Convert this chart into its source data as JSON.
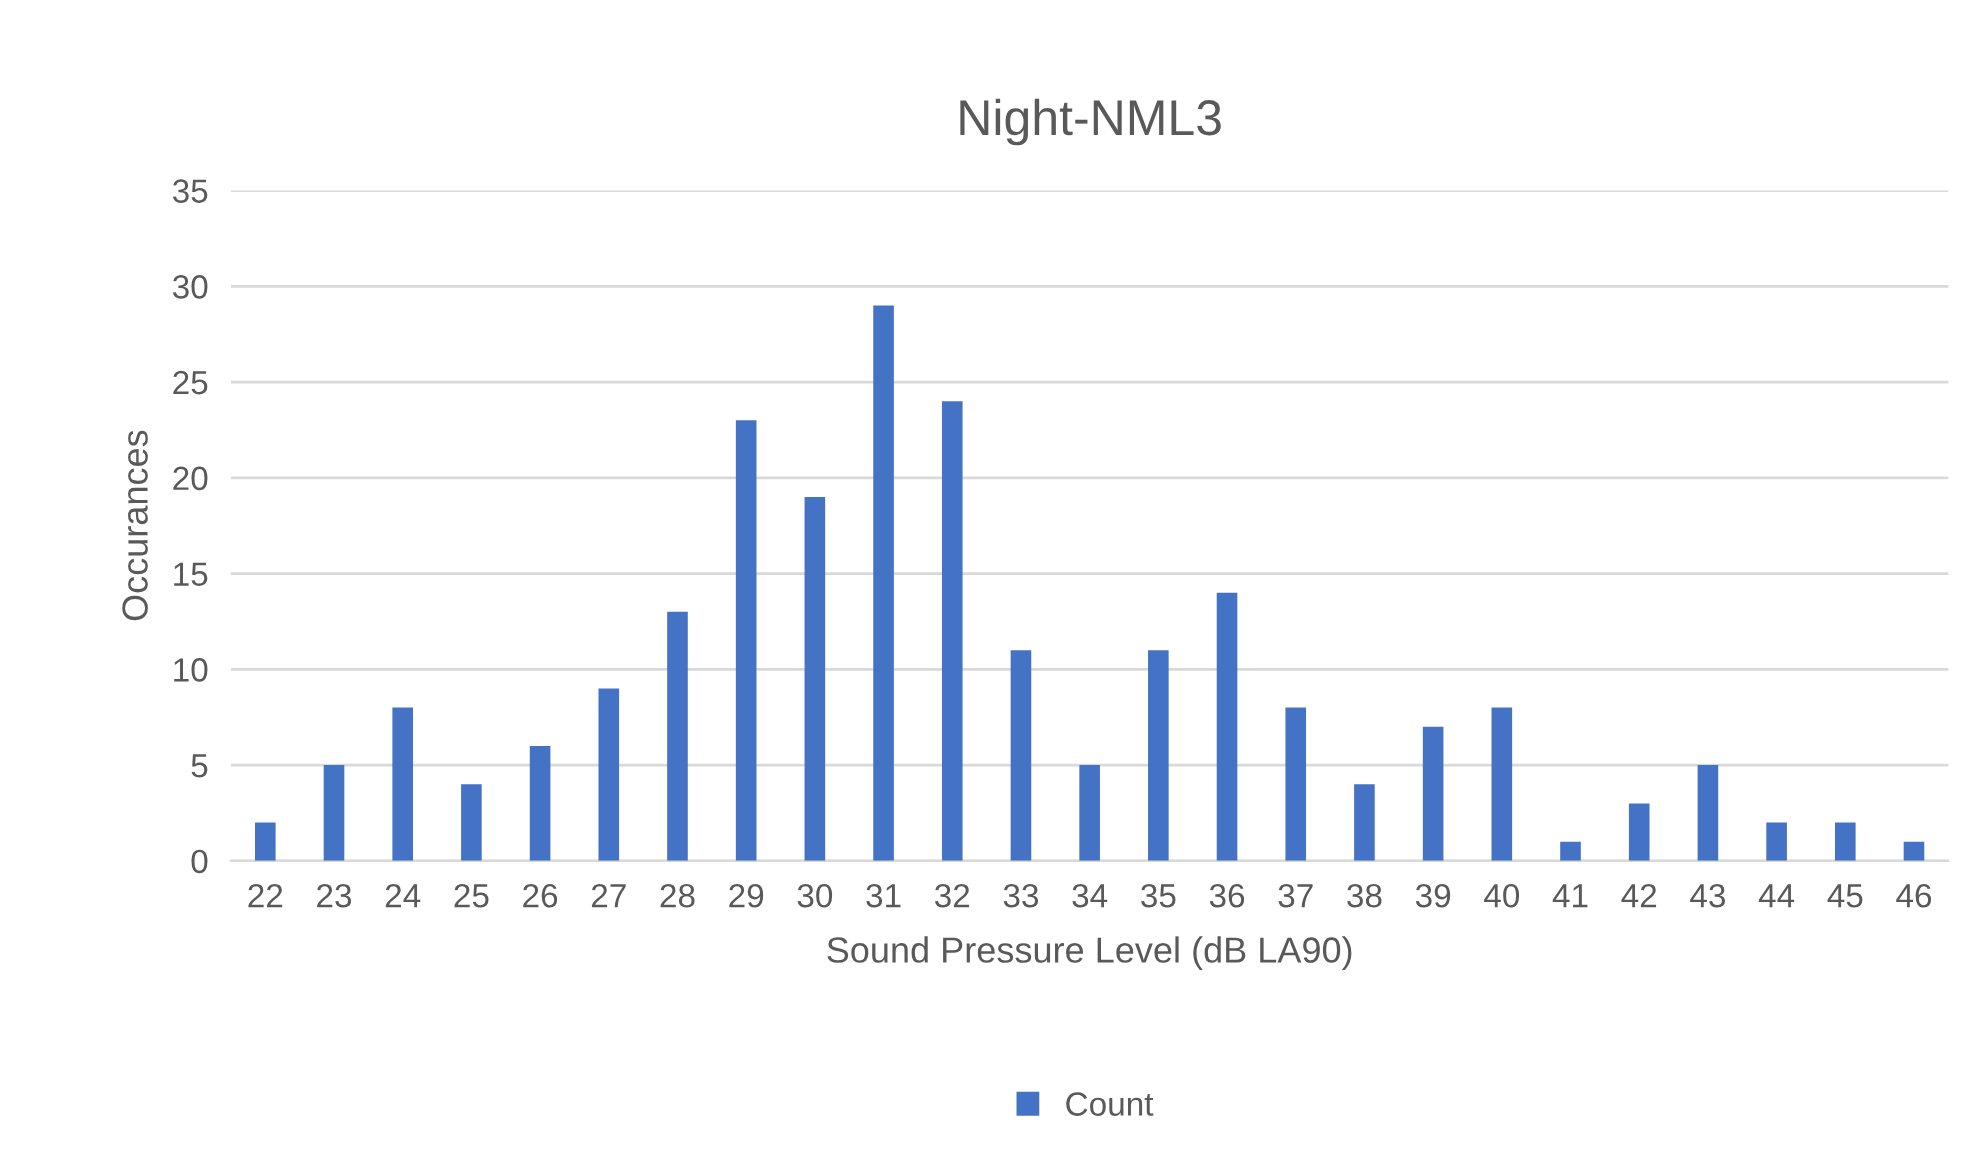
{
  "chart_data": {
    "type": "bar",
    "title": "Night-NML3",
    "xlabel": "Sound Pressure Level (dB LA90)",
    "ylabel": "Occurances",
    "categories": [
      "22",
      "23",
      "24",
      "25",
      "26",
      "27",
      "28",
      "29",
      "30",
      "31",
      "32",
      "33",
      "34",
      "35",
      "36",
      "37",
      "38",
      "39",
      "40",
      "41",
      "42",
      "43",
      "44",
      "45",
      "46"
    ],
    "series": [
      {
        "name": "Count",
        "color": "#4472c4",
        "values": [
          2,
          5,
          8,
          4,
          6,
          9,
          13,
          23,
          19,
          29,
          24,
          11,
          5,
          11,
          14,
          8,
          4,
          7,
          8,
          1,
          3,
          5,
          2,
          2,
          1
        ]
      }
    ],
    "ylim": [
      0,
      35
    ],
    "yticks": [
      0,
      5,
      10,
      15,
      20,
      25,
      30,
      35
    ],
    "grid": "y",
    "legend": "bottom"
  }
}
